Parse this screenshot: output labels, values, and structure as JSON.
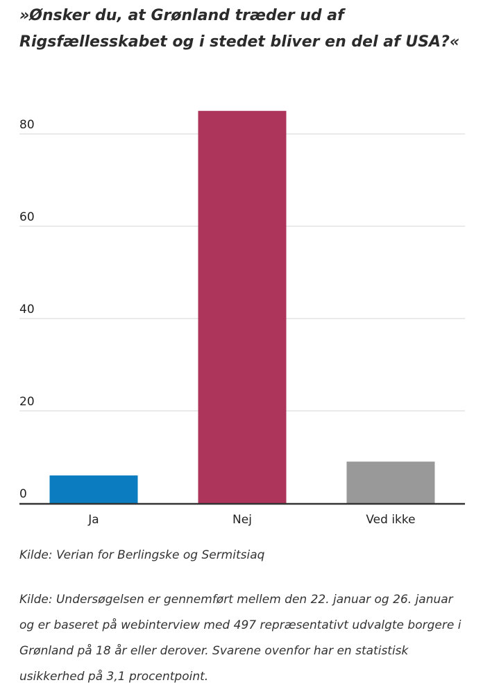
{
  "title": "»Ønsker du, at Grønland træder ud af Rigsfællesskabet og i stedet bliver en del af USA?«",
  "source": "Kilde: Verian for Berlingske og Sermitsiaq",
  "note": "Kilde: Undersøgelsen er gennemført mellem den 22. januar og 26. januar og er baseret på webinterview med 497 repræsentativt udvalgte borgere i Grønland på 18 år eller derover. Svarene ovenfor har en statistisk usikkerhed på 3,1 procentpoint.",
  "chart_data": {
    "type": "bar",
    "categories": [
      "Ja",
      "Nej",
      "Ved ikke"
    ],
    "values": [
      6,
      85,
      9
    ],
    "colors": [
      "#0a7cbf",
      "#ad345b",
      "#999999"
    ],
    "ylim": [
      0,
      100
    ],
    "yticks": [
      0,
      20,
      40,
      60,
      80
    ],
    "grid": true
  }
}
